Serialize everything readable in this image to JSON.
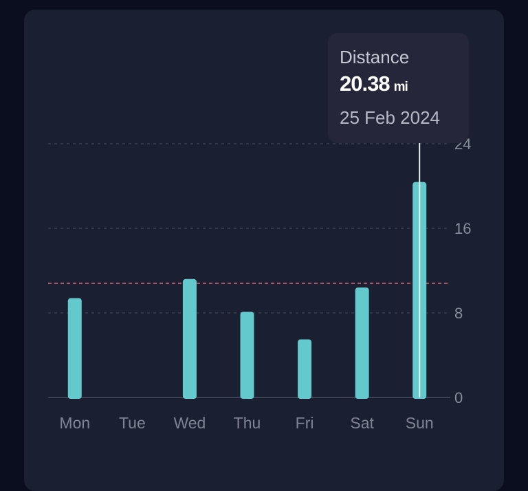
{
  "chart_data": {
    "type": "bar",
    "categories": [
      "Mon",
      "Tue",
      "Wed",
      "Thu",
      "Fri",
      "Sat",
      "Sun"
    ],
    "values": [
      9.4,
      0,
      11.2,
      8.1,
      5.5,
      10.4,
      20.38
    ],
    "ylim": [
      0,
      24
    ],
    "yticks": [
      0,
      8,
      16,
      24
    ],
    "ytick_labels": [
      "0",
      "8",
      "16",
      "24"
    ],
    "y_axis_side": "right",
    "grid": true,
    "reference_line": {
      "value": 10.8,
      "color": "#d86a75",
      "style": "dashed"
    },
    "bar_color": "#63c9cc",
    "selected_index": 6
  },
  "tooltip": {
    "title": "Distance",
    "value": "20.38",
    "unit": "mi",
    "date": "25 Feb 2024"
  }
}
